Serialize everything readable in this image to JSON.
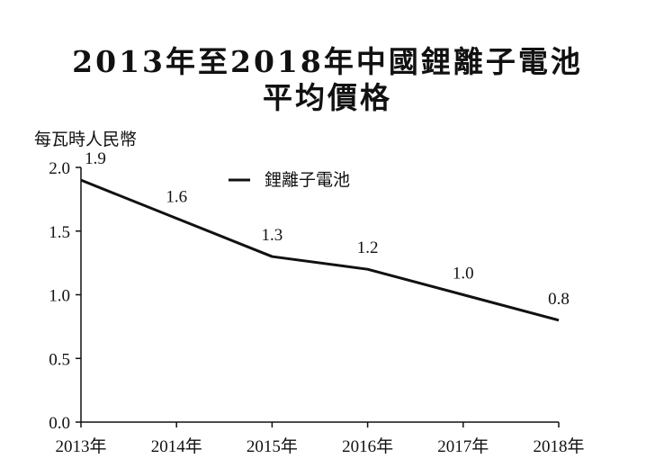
{
  "chart_data": {
    "type": "line",
    "title_lines": [
      "2013年至2018年中國鋰離子電池",
      "平均價格"
    ],
    "ylabel": "每瓦時人民幣",
    "xlabel": "",
    "categories": [
      "2013年",
      "2014年",
      "2015年",
      "2016年",
      "2017年",
      "2018年"
    ],
    "series": [
      {
        "name": "鋰離子電池",
        "values": [
          1.9,
          1.6,
          1.3,
          1.2,
          1.0,
          0.8
        ]
      }
    ],
    "data_labels": [
      "1.9",
      "1.6",
      "1.3",
      "1.2",
      "1.0",
      "0.8"
    ],
    "ylim": [
      0,
      2.0
    ],
    "yticks": [
      "0.0",
      "0.5",
      "1.0",
      "1.5",
      "2.0"
    ],
    "grid": false,
    "legend_position": "top-center",
    "line_color": "#111111"
  }
}
